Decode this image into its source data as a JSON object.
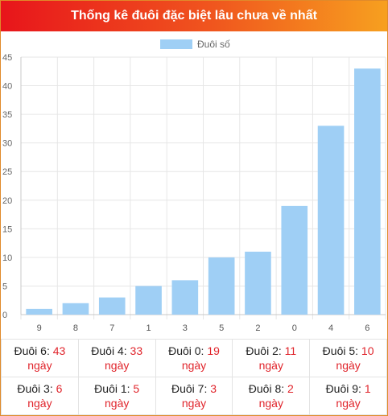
{
  "header": {
    "title": "Thống kê đuôi đặc biệt lâu chưa về nhất"
  },
  "colors": {
    "bar": "#9fcff5",
    "accent": "#e0242b"
  },
  "chart_data": {
    "type": "bar",
    "categories": [
      "9",
      "8",
      "7",
      "1",
      "3",
      "5",
      "2",
      "0",
      "4",
      "6"
    ],
    "series": [
      {
        "name": "Đuôi số",
        "values": [
          1,
          2,
          3,
          5,
          6,
          10,
          11,
          19,
          33,
          43
        ]
      }
    ],
    "ylim": [
      0,
      45
    ],
    "yticks": [
      0,
      5,
      10,
      15,
      20,
      25,
      30,
      35,
      40,
      45
    ],
    "legend_position": "top-center",
    "grid": true
  },
  "summary": {
    "unit": "ngày",
    "rows": [
      [
        {
          "label": "Đuôi 6: ",
          "value": "43"
        },
        {
          "label": "Đuôi 4: ",
          "value": "33"
        },
        {
          "label": "Đuôi 0: ",
          "value": "19"
        },
        {
          "label": "Đuôi 2: ",
          "value": "11"
        },
        {
          "label": "Đuôi 5: ",
          "value": "10"
        }
      ],
      [
        {
          "label": "Đuôi 3: ",
          "value": "6"
        },
        {
          "label": "Đuôi 1: ",
          "value": "5"
        },
        {
          "label": "Đuôi 7: ",
          "value": "3"
        },
        {
          "label": "Đuôi 8: ",
          "value": "2"
        },
        {
          "label": "Đuôi 9: ",
          "value": "1"
        }
      ]
    ]
  }
}
